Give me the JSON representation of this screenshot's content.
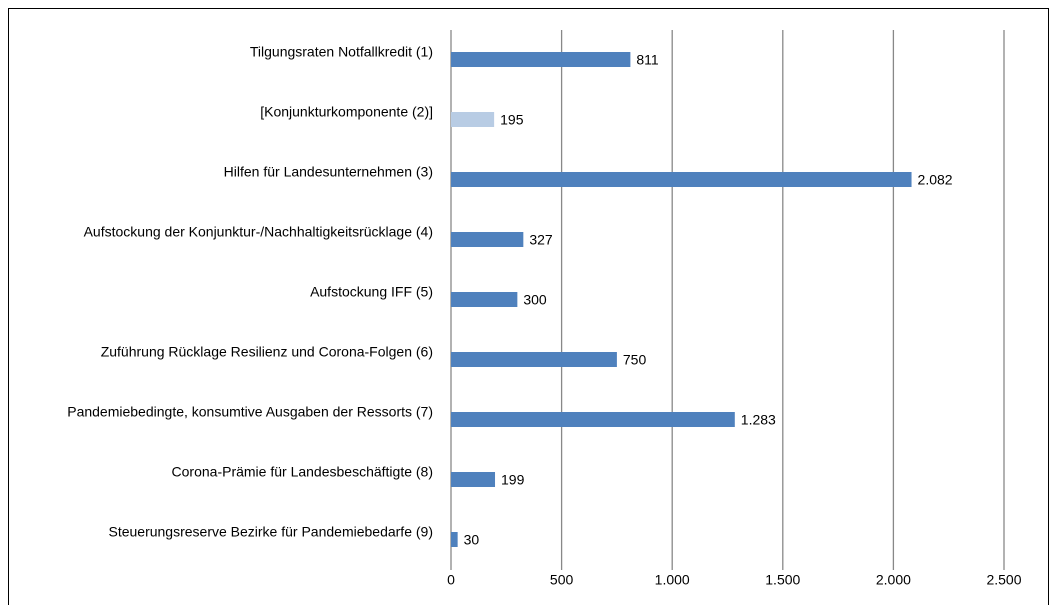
{
  "chart_data": {
    "type": "bar",
    "orientation": "horizontal",
    "categories": [
      "Tilgungsraten Notfallkredit (1)",
      "[Konjunkturkomponente (2)]",
      "Hilfen für Landesunternehmen (3)",
      "Aufstockung der Konjunktur-/Nachhaltigkeitsrücklage (4)",
      "Aufstockung IFF (5)",
      "Zuführung Rücklage Resilienz und Corona-Folgen (6)",
      "Pandemiebedingte, konsumtive Ausgaben der Ressorts (7)",
      "Corona-Prämie für Landesbeschäftigte (8)",
      "Steuerungsreserve Bezirke für Pandemiebedarfe (9)"
    ],
    "values": [
      811,
      195,
      2082,
      327,
      300,
      750,
      1283,
      199,
      30
    ],
    "value_labels": [
      "811",
      "195",
      "2.082",
      "327",
      "300",
      "750",
      "1.283",
      "199",
      "30"
    ],
    "colors": [
      "#4f81bd",
      "#b8cce4",
      "#4f81bd",
      "#4f81bd",
      "#4f81bd",
      "#4f81bd",
      "#4f81bd",
      "#4f81bd",
      "#4f81bd"
    ],
    "xlim": [
      0,
      2500
    ],
    "xticks": [
      0,
      500,
      {
        "value": 1000,
        "label": "1.000"
      },
      {
        "value": 1500,
        "label": "1.500"
      },
      {
        "value": 2000,
        "label": "2.000"
      },
      {
        "value": 2500,
        "label": "2.500"
      }
    ],
    "grid": true
  }
}
